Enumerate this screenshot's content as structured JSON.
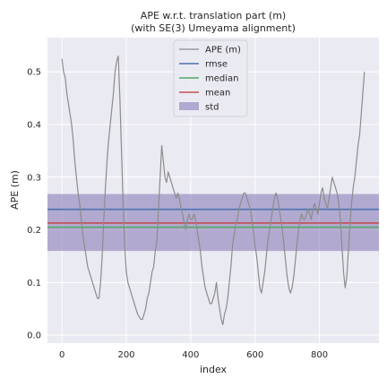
{
  "chart_data": {
    "type": "line",
    "title": "APE w.r.t. translation part (m)",
    "subtitle": "(with SE(3) Umeyama alignment)",
    "xlabel": "index",
    "ylabel": "APE (m)",
    "xlim": [
      -45,
      985
    ],
    "ylim": [
      -0.015,
      0.565
    ],
    "xticks": [
      0,
      200,
      400,
      600,
      800
    ],
    "yticks": [
      0.0,
      0.1,
      0.2,
      0.3,
      0.4,
      0.5
    ],
    "grid": true,
    "background": "#eaeaf2",
    "legend_position": "upper center",
    "series": [
      {
        "name": "APE (m)",
        "color": "#8c8c8c",
        "x": [
          0,
          5,
          10,
          15,
          20,
          25,
          30,
          35,
          40,
          45,
          50,
          55,
          60,
          65,
          70,
          75,
          80,
          85,
          90,
          95,
          100,
          105,
          110,
          115,
          120,
          125,
          130,
          135,
          140,
          145,
          150,
          155,
          160,
          165,
          170,
          175,
          180,
          185,
          190,
          195,
          200,
          205,
          210,
          215,
          220,
          225,
          230,
          235,
          240,
          245,
          250,
          255,
          260,
          265,
          270,
          275,
          280,
          285,
          290,
          295,
          300,
          305,
          310,
          315,
          320,
          325,
          330,
          335,
          340,
          345,
          350,
          355,
          360,
          365,
          370,
          375,
          380,
          385,
          390,
          395,
          400,
          405,
          410,
          415,
          420,
          425,
          430,
          435,
          440,
          445,
          450,
          455,
          460,
          465,
          470,
          475,
          480,
          485,
          490,
          495,
          500,
          505,
          510,
          515,
          520,
          525,
          530,
          535,
          540,
          545,
          550,
          555,
          560,
          565,
          570,
          575,
          580,
          585,
          590,
          595,
          600,
          605,
          610,
          615,
          620,
          625,
          630,
          635,
          640,
          645,
          650,
          655,
          660,
          665,
          670,
          675,
          680,
          685,
          690,
          695,
          700,
          705,
          710,
          715,
          720,
          725,
          730,
          735,
          740,
          745,
          750,
          755,
          760,
          765,
          770,
          775,
          780,
          785,
          790,
          795,
          800,
          805,
          810,
          815,
          820,
          825,
          830,
          835,
          840,
          845,
          850,
          855,
          860,
          865,
          870,
          875,
          880,
          885,
          890,
          895,
          900,
          905,
          910,
          915,
          920,
          925,
          930,
          935,
          940
        ],
        "values": [
          0.525,
          0.5,
          0.49,
          0.46,
          0.44,
          0.42,
          0.4,
          0.37,
          0.33,
          0.3,
          0.27,
          0.25,
          0.22,
          0.19,
          0.17,
          0.15,
          0.13,
          0.12,
          0.11,
          0.1,
          0.09,
          0.08,
          0.07,
          0.07,
          0.1,
          0.15,
          0.22,
          0.28,
          0.33,
          0.37,
          0.4,
          0.43,
          0.46,
          0.5,
          0.52,
          0.53,
          0.45,
          0.35,
          0.25,
          0.17,
          0.12,
          0.1,
          0.09,
          0.08,
          0.07,
          0.06,
          0.05,
          0.04,
          0.035,
          0.03,
          0.03,
          0.04,
          0.05,
          0.07,
          0.08,
          0.1,
          0.12,
          0.13,
          0.16,
          0.18,
          0.24,
          0.3,
          0.36,
          0.33,
          0.3,
          0.29,
          0.31,
          0.3,
          0.29,
          0.28,
          0.27,
          0.26,
          0.27,
          0.26,
          0.24,
          0.23,
          0.21,
          0.2,
          0.22,
          0.23,
          0.22,
          0.22,
          0.23,
          0.22,
          0.2,
          0.18,
          0.16,
          0.13,
          0.11,
          0.09,
          0.08,
          0.07,
          0.06,
          0.06,
          0.07,
          0.08,
          0.1,
          0.07,
          0.05,
          0.03,
          0.02,
          0.04,
          0.05,
          0.07,
          0.1,
          0.13,
          0.17,
          0.19,
          0.21,
          0.22,
          0.24,
          0.25,
          0.26,
          0.27,
          0.27,
          0.26,
          0.25,
          0.24,
          0.22,
          0.2,
          0.17,
          0.15,
          0.12,
          0.09,
          0.08,
          0.1,
          0.12,
          0.15,
          0.18,
          0.2,
          0.22,
          0.24,
          0.26,
          0.27,
          0.26,
          0.24,
          0.22,
          0.2,
          0.17,
          0.14,
          0.11,
          0.09,
          0.08,
          0.09,
          0.11,
          0.14,
          0.17,
          0.2,
          0.22,
          0.23,
          0.22,
          0.22,
          0.23,
          0.24,
          0.23,
          0.22,
          0.24,
          0.25,
          0.24,
          0.23,
          0.25,
          0.27,
          0.28,
          0.26,
          0.25,
          0.24,
          0.26,
          0.28,
          0.3,
          0.29,
          0.28,
          0.27,
          0.25,
          0.22,
          0.17,
          0.12,
          0.09,
          0.11,
          0.16,
          0.21,
          0.25,
          0.28,
          0.3,
          0.33,
          0.36,
          0.38,
          0.42,
          0.46,
          0.5
        ]
      },
      {
        "name": "rmse",
        "color": "#4c72b0",
        "value": 0.239
      },
      {
        "name": "median",
        "color": "#55a868",
        "value": 0.205
      },
      {
        "name": "mean",
        "color": "#c44e52",
        "value": 0.213
      },
      {
        "name": "std",
        "color": "#8172b3",
        "band": [
          0.16,
          0.268
        ]
      }
    ]
  }
}
